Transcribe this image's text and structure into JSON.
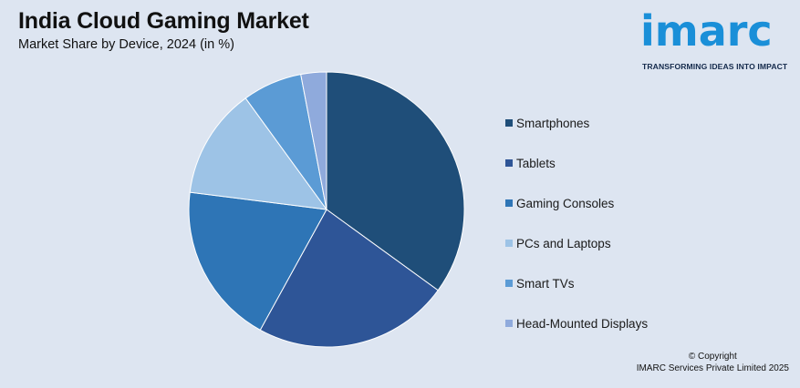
{
  "header": {
    "title": "India Cloud Gaming Market",
    "subtitle": "Market Share by Device, 2024 (in %)"
  },
  "logo": {
    "word": "imarc",
    "tagline": "TRANSFORMING IDEAS INTO IMPACT",
    "color": "#1a8fd8"
  },
  "chart_data": {
    "type": "pie",
    "title": "India Cloud Gaming Market",
    "subtitle": "Market Share by Device, 2024 (in %)",
    "legend_position": "right",
    "start_angle_deg": 0,
    "direction": "clockwise",
    "slices": [
      {
        "label": "Smartphones",
        "value": 35,
        "color": "#1f4e79"
      },
      {
        "label": "Tablets",
        "value": 23,
        "color": "#2e5597"
      },
      {
        "label": "Gaming Consoles",
        "value": 19,
        "color": "#2e75b6"
      },
      {
        "label": "PCs and Laptops",
        "value": 13,
        "color": "#9dc3e6"
      },
      {
        "label": "Smart TVs",
        "value": 7,
        "color": "#5b9bd5"
      },
      {
        "label": "Head-Mounted Displays",
        "value": 3,
        "color": "#8faadc"
      }
    ]
  },
  "footer": {
    "copyright_line1": "© Copyright",
    "copyright_line2": "IMARC Services Private Limited 2025"
  }
}
